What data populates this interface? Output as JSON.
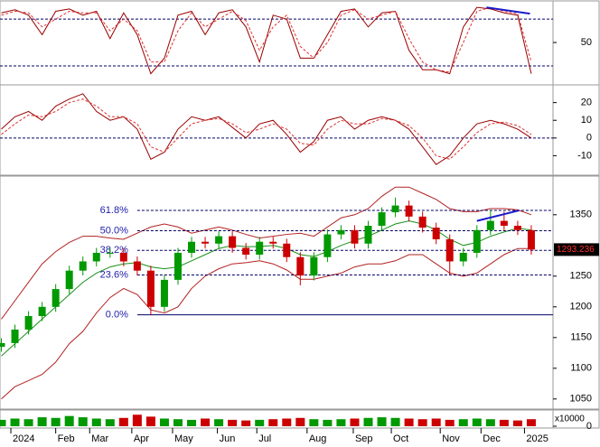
{
  "chart_data": [
    {
      "type": "line",
      "ylim": [
        -2,
        101
      ],
      "yticks": [
        50
      ],
      "hlines": [
        80,
        20
      ],
      "series": [
        {
          "color": "#990000",
          "dash": false,
          "values": [
            88,
            92,
            85,
            60,
            90,
            93,
            85,
            90,
            55,
            88,
            60,
            10,
            30,
            85,
            90,
            60,
            88,
            92,
            70,
            25,
            85,
            80,
            30,
            30,
            60,
            90,
            93,
            70,
            88,
            90,
            40,
            15,
            15,
            10,
            70,
            95,
            93,
            88,
            85,
            10
          ]
        },
        {
          "color": "#e03030",
          "dash": true,
          "values": [
            85,
            90,
            88,
            70,
            80,
            90,
            88,
            88,
            65,
            80,
            65,
            25,
            25,
            65,
            88,
            70,
            80,
            90,
            78,
            40,
            70,
            85,
            45,
            30,
            50,
            85,
            92,
            80,
            85,
            90,
            55,
            25,
            15,
            12,
            50,
            90,
            95,
            90,
            87,
            25
          ]
        }
      ],
      "trendlines": [
        {
          "color": "#1a1acc",
          "x": [
            35.7,
            38.9
          ],
          "y": [
            95,
            87
          ]
        }
      ]
    },
    {
      "type": "line",
      "ylim": [
        -20,
        29
      ],
      "yticks": [
        -10,
        0,
        10,
        20
      ],
      "hlines": [
        0
      ],
      "series": [
        {
          "color": "#990000",
          "dash": false,
          "values": [
            5,
            12,
            15,
            10,
            18,
            22,
            25,
            15,
            10,
            12,
            5,
            -12,
            -8,
            5,
            12,
            10,
            12,
            6,
            0,
            8,
            10,
            2,
            -8,
            -2,
            10,
            12,
            5,
            10,
            12,
            10,
            5,
            -5,
            -15,
            -10,
            0,
            8,
            10,
            8,
            5,
            0
          ]
        },
        {
          "color": "#e03030",
          "dash": true,
          "values": [
            2,
            8,
            13,
            12,
            15,
            20,
            22,
            18,
            12,
            12,
            8,
            -5,
            -8,
            0,
            8,
            10,
            11,
            8,
            3,
            5,
            8,
            5,
            -3,
            -4,
            5,
            10,
            8,
            8,
            11,
            10,
            7,
            0,
            -10,
            -12,
            -5,
            3,
            8,
            9,
            7,
            2
          ]
        }
      ]
    },
    {
      "type": "candlestick",
      "ylim": [
        1035,
        1410
      ],
      "yticks": [
        1050,
        1100,
        1150,
        1200,
        1250,
        1350
      ],
      "x": [
        0,
        1,
        2,
        3,
        4,
        5,
        6,
        7,
        8,
        9,
        10,
        11,
        12,
        13,
        14,
        15,
        16,
        17,
        18,
        19,
        20,
        21,
        22,
        23,
        24,
        25,
        26,
        27,
        28,
        29,
        30,
        31,
        32,
        33,
        34,
        35,
        36,
        37,
        38,
        39
      ],
      "up_color": "#009900",
      "down_color": "#cc0000",
      "open": [
        1135,
        1141,
        1163,
        1185,
        1200,
        1229,
        1259,
        1274,
        1288,
        1288,
        1274,
        1259,
        1200,
        1244,
        1288,
        1306,
        1303,
        1315,
        1296,
        1285,
        1306,
        1303,
        1281,
        1251,
        1281,
        1318,
        1325,
        1303,
        1332,
        1354,
        1365,
        1347,
        1329,
        1310,
        1274,
        1288,
        1325,
        1340,
        1332,
        1325
      ],
      "high": [
        1149,
        1171,
        1193,
        1208,
        1237,
        1267,
        1282,
        1296,
        1296,
        1296,
        1282,
        1267,
        1252,
        1296,
        1314,
        1314,
        1323,
        1323,
        1304,
        1314,
        1314,
        1311,
        1289,
        1289,
        1326,
        1333,
        1333,
        1340,
        1362,
        1378,
        1373,
        1355,
        1337,
        1318,
        1296,
        1333,
        1357,
        1355,
        1340,
        1333
      ],
      "low": [
        1127,
        1133,
        1155,
        1177,
        1192,
        1221,
        1251,
        1266,
        1280,
        1266,
        1251,
        1187,
        1192,
        1236,
        1280,
        1295,
        1295,
        1288,
        1277,
        1277,
        1295,
        1273,
        1235,
        1243,
        1273,
        1310,
        1295,
        1295,
        1324,
        1346,
        1339,
        1321,
        1302,
        1252,
        1266,
        1280,
        1317,
        1324,
        1317,
        1285
      ],
      "close": [
        1141,
        1163,
        1185,
        1200,
        1229,
        1259,
        1274,
        1288,
        1288,
        1274,
        1259,
        1200,
        1244,
        1288,
        1306,
        1303,
        1315,
        1296,
        1285,
        1306,
        1303,
        1281,
        1251,
        1281,
        1318,
        1325,
        1303,
        1332,
        1354,
        1365,
        1347,
        1329,
        1310,
        1274,
        1288,
        1325,
        1340,
        1332,
        1325,
        1293.236
      ],
      "series": [
        {
          "color": "#b22222",
          "values": [
            1180,
            1210,
            1240,
            1270,
            1290,
            1305,
            1315,
            1315,
            1312,
            1310,
            1320,
            1330,
            1335,
            1330,
            1320,
            1325,
            1330,
            1325,
            1318,
            1312,
            1315,
            1318,
            1320,
            1315,
            1330,
            1345,
            1350,
            1360,
            1380,
            1395,
            1395,
            1385,
            1375,
            1360,
            1355,
            1355,
            1360,
            1360,
            1358,
            1350
          ]
        },
        {
          "color": "#1a8f1a",
          "values": [
            1120,
            1140,
            1160,
            1180,
            1200,
            1220,
            1240,
            1255,
            1265,
            1270,
            1272,
            1265,
            1262,
            1265,
            1275,
            1285,
            1295,
            1300,
            1298,
            1298,
            1300,
            1295,
            1285,
            1282,
            1290,
            1300,
            1308,
            1315,
            1325,
            1335,
            1340,
            1335,
            1325,
            1310,
            1300,
            1305,
            1315,
            1322,
            1328,
            1325
          ]
        },
        {
          "color": "#b22222",
          "values": [
            1050,
            1070,
            1080,
            1090,
            1110,
            1140,
            1160,
            1190,
            1215,
            1230,
            1220,
            1195,
            1190,
            1200,
            1230,
            1250,
            1262,
            1270,
            1272,
            1275,
            1270,
            1260,
            1245,
            1245,
            1250,
            1255,
            1265,
            1270,
            1270,
            1275,
            1285,
            1285,
            1270,
            1255,
            1250,
            1255,
            1270,
            1285,
            1295,
            1295
          ]
        }
      ],
      "levels_from": 10,
      "levels": [
        {
          "value": 1357,
          "label": "61.8%"
        },
        {
          "value": 1324,
          "label": "50.0%"
        },
        {
          "value": 1292,
          "label": "38.2%"
        },
        {
          "value": 1252,
          "label": "23.6%"
        },
        {
          "value": 1187,
          "label": "0.0%"
        }
      ],
      "last_price": 1293.236,
      "trendlines": [
        {
          "color": "#1a1acc",
          "x": [
            35,
            38.1
          ],
          "y": [
            1340,
            1357
          ]
        }
      ]
    },
    {
      "type": "bar",
      "ylim": [
        0,
        120
      ],
      "yticks": [
        0
      ],
      "y_label": "x10000",
      "values": [
        50,
        60,
        55,
        70,
        65,
        80,
        70,
        60,
        55,
        65,
        90,
        75,
        60,
        55,
        50,
        60,
        55,
        50,
        45,
        50,
        55,
        60,
        65,
        55,
        50,
        55,
        60,
        65,
        70,
        65,
        60,
        55,
        60,
        50,
        55,
        60,
        55,
        50,
        45,
        55
      ],
      "xlim": [
        -0.1,
        40.6
      ],
      "xticks": [
        {
          "value": 0.7,
          "label": "2024"
        },
        {
          "value": 4,
          "label": "Feb"
        },
        {
          "value": 6.5,
          "label": "Mar"
        },
        {
          "value": 9.6,
          "label": "Apr"
        },
        {
          "value": 12.6,
          "label": "May"
        },
        {
          "value": 15.9,
          "label": "Jun"
        },
        {
          "value": 18.8,
          "label": "Jul"
        },
        {
          "value": 22.5,
          "label": "Aug"
        },
        {
          "value": 25.9,
          "label": "Sep"
        },
        {
          "value": 28.7,
          "label": "Oct"
        },
        {
          "value": 32.3,
          "label": "Nov"
        },
        {
          "value": 35.3,
          "label": "Dec"
        },
        {
          "value": 38.5,
          "label": "2025"
        }
      ]
    }
  ]
}
